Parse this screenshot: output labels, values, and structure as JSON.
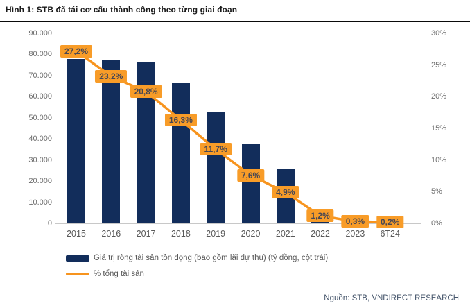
{
  "figure": {
    "title": "Hình 1: STB đã tái cơ cấu thành công theo từng giai đoạn",
    "source": "Nguồn: STB, VNDIRECT RESEARCH"
  },
  "legend": {
    "bar_label": "Giá trị ròng tài sản tồn đọng (bao gồm lãi dự thu) (tỷ đồng, cột trái)",
    "line_label": "% tổng tài sản"
  },
  "colors": {
    "bar": "#122d5b",
    "line": "#f7941e",
    "label_box": "#f89c28",
    "label_text": "#474754",
    "axis_text": "#6e6e6e",
    "axis_line": "#c8c8c8"
  },
  "chart_data": {
    "type": "combo",
    "categories": [
      "2015",
      "2016",
      "2017",
      "2018",
      "2019",
      "2020",
      "2021",
      "2022",
      "2023",
      "6T24"
    ],
    "series": [
      {
        "name": "Giá trị ròng tài sản tồn đọng (bao gồm lãi dự thu) (tỷ đồng, cột trái)",
        "type": "bar",
        "axis": "left",
        "values": [
          78000,
          77200,
          76600,
          66400,
          53000,
          37300,
          25600,
          7000,
          2000,
          1400
        ]
      },
      {
        "name": "% tổng tài sản",
        "type": "line",
        "axis": "right",
        "values": [
          27.2,
          23.2,
          20.8,
          16.3,
          11.7,
          7.6,
          4.9,
          1.2,
          0.3,
          0.2
        ],
        "point_labels": [
          "27,2%",
          "23,2%",
          "20,8%",
          "16,3%",
          "11,7%",
          "7,6%",
          "4,9%",
          "1,2%",
          "0,3%",
          "0,2%"
        ]
      }
    ],
    "left_axis": {
      "min": 0,
      "max": 90000,
      "step": 10000,
      "tick_labels": [
        "0",
        "10.000",
        "20.000",
        "30.000",
        "40.000",
        "50.000",
        "60.000",
        "70.000",
        "80.000",
        "90.000"
      ]
    },
    "right_axis": {
      "min": 0,
      "max": 30,
      "step": 5,
      "tick_labels": [
        "0%",
        "5%",
        "10%",
        "15%",
        "20%",
        "25%",
        "30%"
      ]
    },
    "grid": false,
    "legend_position": "bottom-left"
  }
}
